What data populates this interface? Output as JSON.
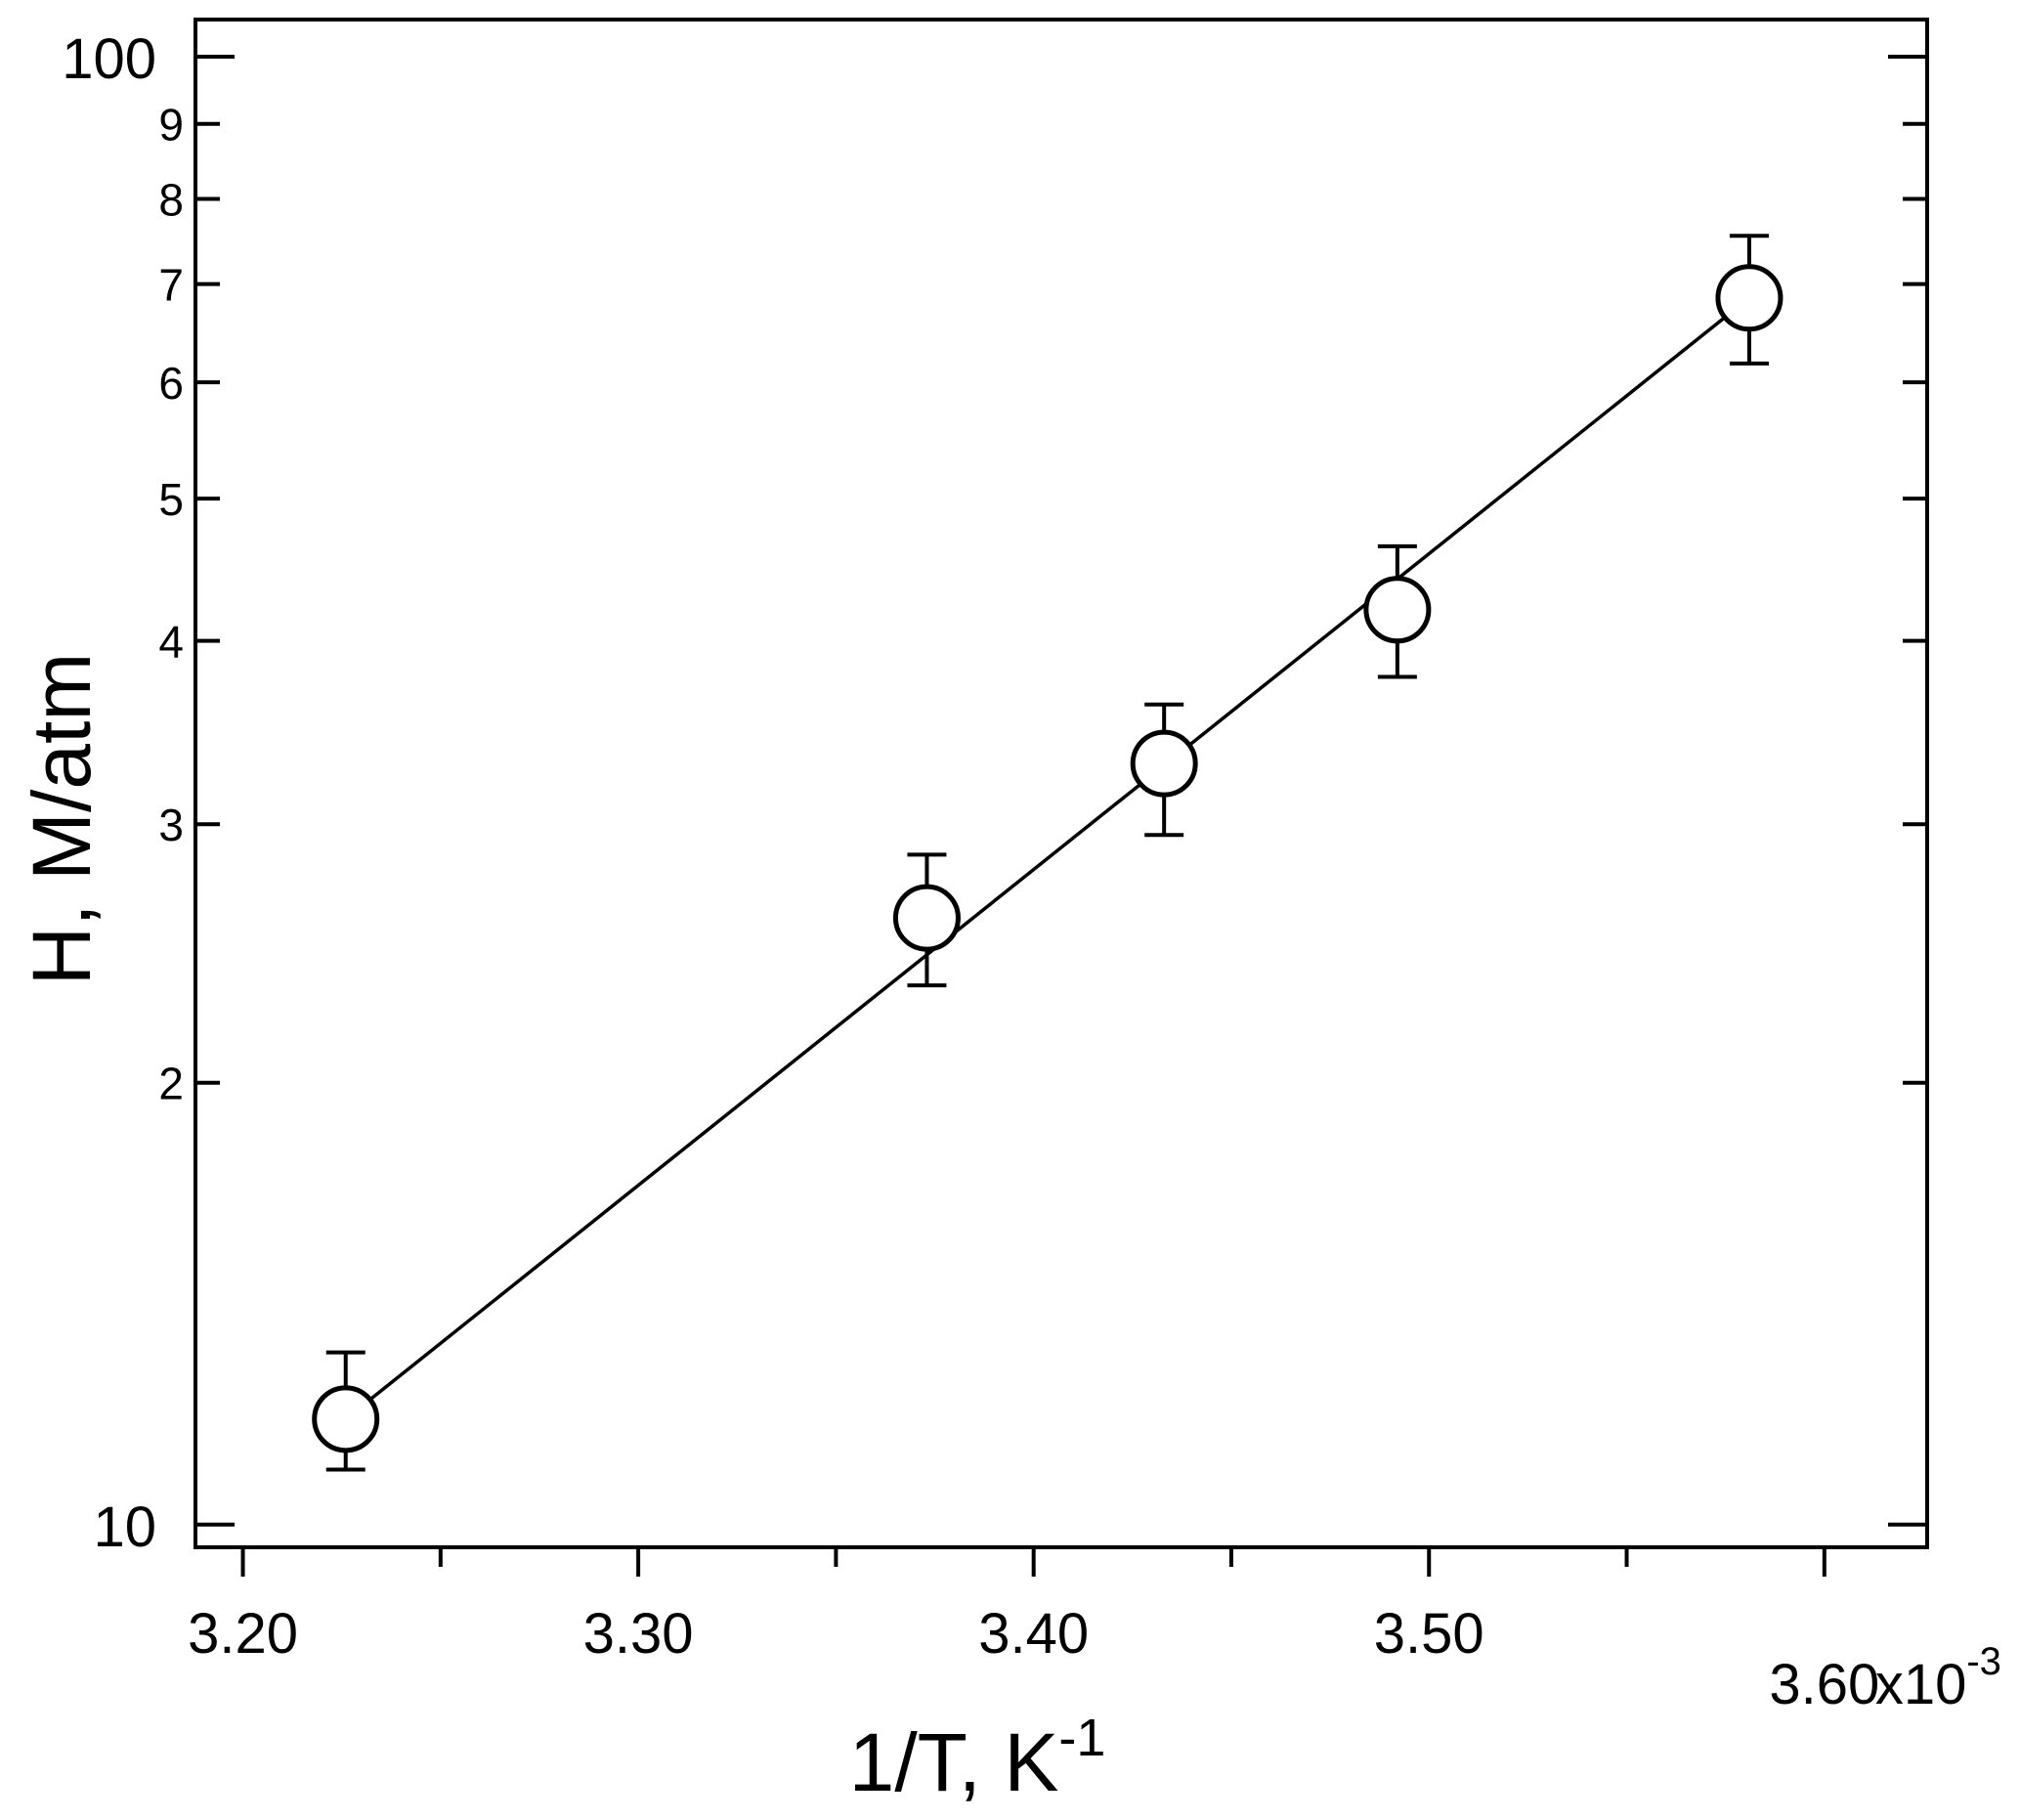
{
  "chart_data": {
    "type": "scatter",
    "xlabel": "1/T, K",
    "xlabel_superscript": "-1",
    "ylabel": "H, M/atm",
    "x_multiplier_label": "x10",
    "x_multiplier_superscript": "-3",
    "x_scale": "linear",
    "y_scale": "log",
    "xlim": [
      3.188,
      3.626
    ],
    "ylim": [
      9.65,
      106
    ],
    "x_ticks": [
      3.2,
      3.3,
      3.4,
      3.5,
      3.6
    ],
    "x_tick_labels": [
      "3.20",
      "3.30",
      "3.40",
      "3.50",
      "3.60"
    ],
    "x_minor_ticks": [
      3.25,
      3.35,
      3.45,
      3.55
    ],
    "y_major_ticks": [
      10,
      100
    ],
    "y_major_tick_labels": [
      "10",
      "100"
    ],
    "y_minor_ticks": [
      20,
      30,
      40,
      50,
      60,
      70,
      80,
      90
    ],
    "y_minor_tick_labels": [
      "2",
      "3",
      "4",
      "5",
      "6",
      "7",
      "8",
      "9"
    ],
    "grid": false,
    "series": [
      {
        "marker": "open-circle",
        "x": [
          3.226,
          3.373,
          3.433,
          3.492,
          3.581
        ],
        "y": [
          11.8,
          25.9,
          33.0,
          42.0,
          68.5
        ],
        "y_err_low": [
          10.9,
          23.3,
          29.5,
          37.8,
          61.8
        ],
        "y_err_high": [
          13.1,
          28.6,
          36.2,
          46.4,
          75.5
        ]
      }
    ],
    "fit_line": {
      "x": [
        3.226,
        3.581
      ],
      "y": [
        11.8,
        68.5
      ]
    }
  }
}
